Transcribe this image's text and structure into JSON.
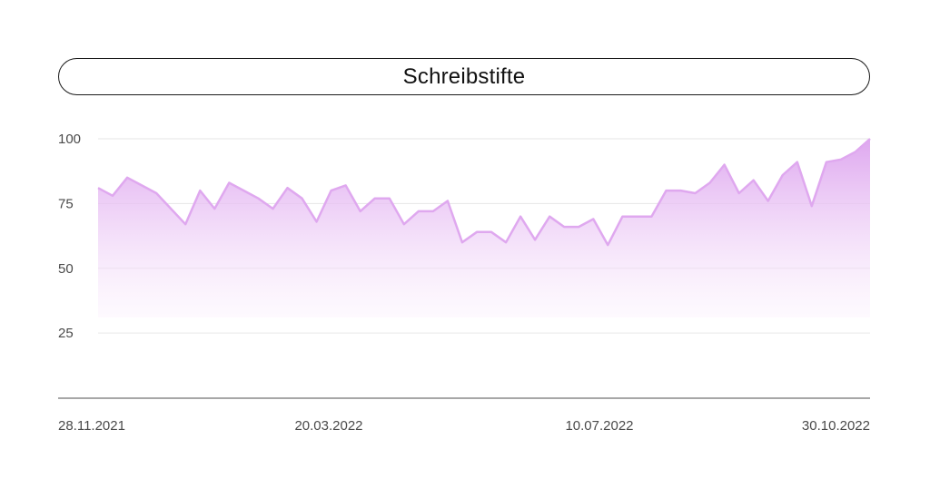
{
  "chart_data": {
    "type": "area",
    "title": "Schreibstifte",
    "xlabel": "",
    "ylabel": "",
    "ylim": [
      0,
      100
    ],
    "y_ticks": [
      25,
      50,
      75,
      100
    ],
    "x_tick_labels": [
      "28.11.2021",
      "20.03.2022",
      "10.07.2022",
      "30.10.2022"
    ],
    "grid": true,
    "color": "#dfa8ef",
    "series": [
      {
        "values": [
          81,
          78,
          85,
          82,
          79,
          73,
          67,
          80,
          73,
          83,
          80,
          77,
          73,
          81,
          77,
          68,
          80,
          82,
          72,
          77,
          77,
          67,
          72,
          72,
          76,
          60,
          64,
          64,
          60,
          70,
          61,
          70,
          66,
          66,
          69,
          59,
          70,
          70,
          70,
          80,
          80,
          79,
          83,
          90,
          79,
          84,
          76,
          86,
          91,
          74,
          91,
          92,
          95,
          100
        ]
      }
    ]
  }
}
